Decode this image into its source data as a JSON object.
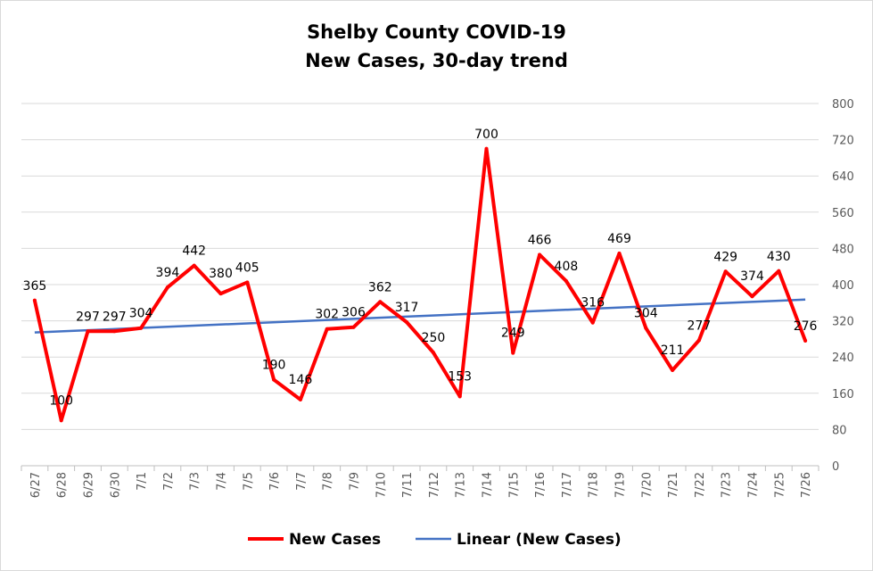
{
  "chart_data": {
    "type": "line",
    "title": "Shelby County COVID-19",
    "subtitle": "New Cases, 30-day trend",
    "categories": [
      "6/27",
      "6/28",
      "6/29",
      "6/30",
      "7/1",
      "7/2",
      "7/3",
      "7/4",
      "7/5",
      "7/6",
      "7/7",
      "7/8",
      "7/9",
      "7/10",
      "7/11",
      "7/12",
      "7/13",
      "7/14",
      "7/15",
      "7/16",
      "7/17",
      "7/18",
      "7/19",
      "7/20",
      "7/21",
      "7/22",
      "7/23",
      "7/24",
      "7/25",
      "7/26"
    ],
    "series": [
      {
        "name": "New Cases",
        "color": "#ff0000",
        "values": [
          365,
          100,
          297,
          297,
          304,
          394,
          442,
          380,
          405,
          190,
          146,
          302,
          306,
          362,
          317,
          250,
          153,
          700,
          249,
          466,
          408,
          316,
          469,
          304,
          211,
          277,
          429,
          374,
          430,
          276
        ]
      },
      {
        "name": "Linear (New Cases)",
        "color": "#4472c4",
        "trendline": "linear"
      }
    ],
    "ylim": [
      0,
      800
    ],
    "yticks": [
      "0",
      "80",
      "160",
      "240",
      "320",
      "400",
      "480",
      "560",
      "640",
      "720",
      "800"
    ],
    "y_axis_side": "right",
    "grid": true,
    "legend": "bottom",
    "data_labels": true
  }
}
